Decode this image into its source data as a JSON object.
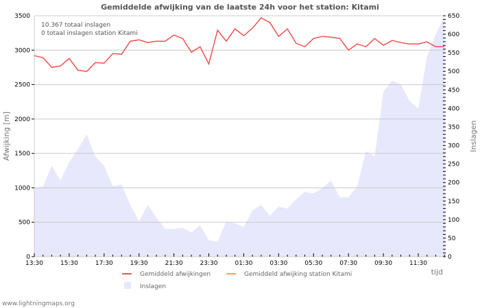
{
  "chart_data": {
    "type": "line",
    "title": "Gemiddelde afwijking van de laatste 24h voor het station: Kitami",
    "xlabel": "tijd",
    "ylabel": "Afwijking  [m]",
    "y2label": "Inslagen",
    "ylim": [
      0,
      3500
    ],
    "y2lim": [
      0,
      650
    ],
    "yticks": [
      0,
      500,
      1000,
      1500,
      2000,
      2500,
      3000,
      3500
    ],
    "y2ticks": [
      0,
      50,
      100,
      150,
      200,
      250,
      300,
      350,
      400,
      450,
      500,
      550,
      600,
      650
    ],
    "xticks": [
      "13:30",
      "15:30",
      "17:30",
      "19:30",
      "21:30",
      "23:30",
      "01:30",
      "03:30",
      "05:30",
      "07:30",
      "09:30",
      "11:30"
    ],
    "grid": true,
    "legend_position": "bottom",
    "annotations": [
      "10.367 totaal inslagen",
      "0 totaal inslagen station Kitami"
    ],
    "series": [
      {
        "name": "Gemiddeld afwijkingen",
        "type": "line",
        "axis": "left",
        "color": "#f05050",
        "values": [
          2920,
          2890,
          2750,
          2770,
          2880,
          2710,
          2690,
          2820,
          2810,
          2950,
          2940,
          3130,
          3150,
          3110,
          3130,
          3130,
          3220,
          3170,
          2970,
          3050,
          2800,
          3290,
          3130,
          3310,
          3210,
          3320,
          3470,
          3400,
          3200,
          3310,
          3100,
          3050,
          3170,
          3200,
          3190,
          3170,
          3000,
          3090,
          3050,
          3170,
          3070,
          3140,
          3110,
          3090,
          3090,
          3120,
          3050,
          3050
        ]
      },
      {
        "name": "Gemiddeld afwijking station Kitami",
        "type": "line",
        "axis": "left",
        "color": "#f7a05a",
        "values": []
      },
      {
        "name": "Inslagen",
        "type": "area",
        "axis": "right",
        "color": "#e8e8fc",
        "values": [
          185,
          190,
          245,
          205,
          255,
          290,
          330,
          270,
          245,
          190,
          195,
          140,
          95,
          140,
          105,
          75,
          75,
          78,
          65,
          85,
          45,
          40,
          95,
          90,
          80,
          125,
          140,
          110,
          135,
          130,
          155,
          175,
          170,
          185,
          205,
          160,
          160,
          190,
          285,
          270,
          445,
          475,
          465,
          420,
          400,
          540,
          600,
          650
        ]
      }
    ]
  },
  "legend": {
    "item1": "Gemiddeld afwijkingen",
    "item2": "Gemiddeld afwijking station Kitami",
    "item3": "Inslagen"
  },
  "footer": "www.lightningmaps.org"
}
